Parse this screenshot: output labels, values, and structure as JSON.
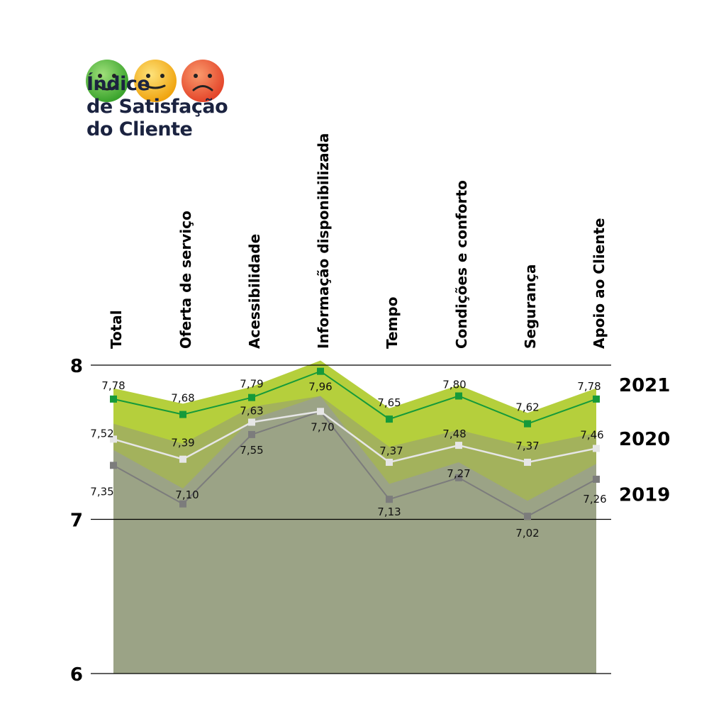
{
  "title": {
    "line1": "Índice",
    "line2": "de Satisfação",
    "line3": "do Cliente"
  },
  "icons": [
    "smile-face-green-icon",
    "neutral-face-yellow-icon",
    "sad-face-red-icon"
  ],
  "colors": {
    "face_green": "#4fb337",
    "face_yellow": "#f2b31b",
    "face_red": "#eb5a34",
    "area_2021": "#b5cf3c",
    "area_2020": "#a3b25c",
    "area_2019": "#9ba386",
    "line_2021": "#159a3a",
    "line_2020": "#e6e6e6",
    "line_2019": "#7c7c7c",
    "title_text": "#1b2340"
  },
  "chart_data": {
    "type": "line",
    "categories": [
      "Total",
      "Oferta de serviço",
      "Acessibilidade",
      "Informação disponibilizada",
      "Tempo",
      "Condições e conforto",
      "Segurança",
      "Apoio ao Cliente"
    ],
    "series": [
      {
        "name": "2021",
        "values": [
          7.78,
          7.68,
          7.79,
          7.96,
          7.65,
          7.8,
          7.62,
          7.78
        ],
        "labels": [
          "7,78",
          "7,68",
          "7,79",
          "7,96",
          "7,65",
          "7,80",
          "7,62",
          "7,78"
        ]
      },
      {
        "name": "2020",
        "values": [
          7.52,
          7.39,
          7.63,
          7.7,
          7.37,
          7.48,
          7.37,
          7.46
        ],
        "labels": [
          "7,52",
          "7,39",
          "7,63",
          "7,70",
          "7,37",
          "7,48",
          "7,37",
          "7,46"
        ]
      },
      {
        "name": "2019",
        "values": [
          7.35,
          7.1,
          7.55,
          7.7,
          7.13,
          7.27,
          7.02,
          7.26
        ],
        "labels": [
          "7,35",
          "7,10",
          "7,55",
          "7,70",
          "7,13",
          "7,27",
          "7,02",
          "7,26"
        ]
      }
    ],
    "yticks": [
      {
        "value": 8,
        "label": "8"
      },
      {
        "value": 7,
        "label": "7"
      },
      {
        "value": 6,
        "label": "6"
      }
    ],
    "ylim": [
      6,
      8
    ],
    "legend_placement": "right",
    "grid": true,
    "xlabel": "",
    "ylabel": ""
  }
}
